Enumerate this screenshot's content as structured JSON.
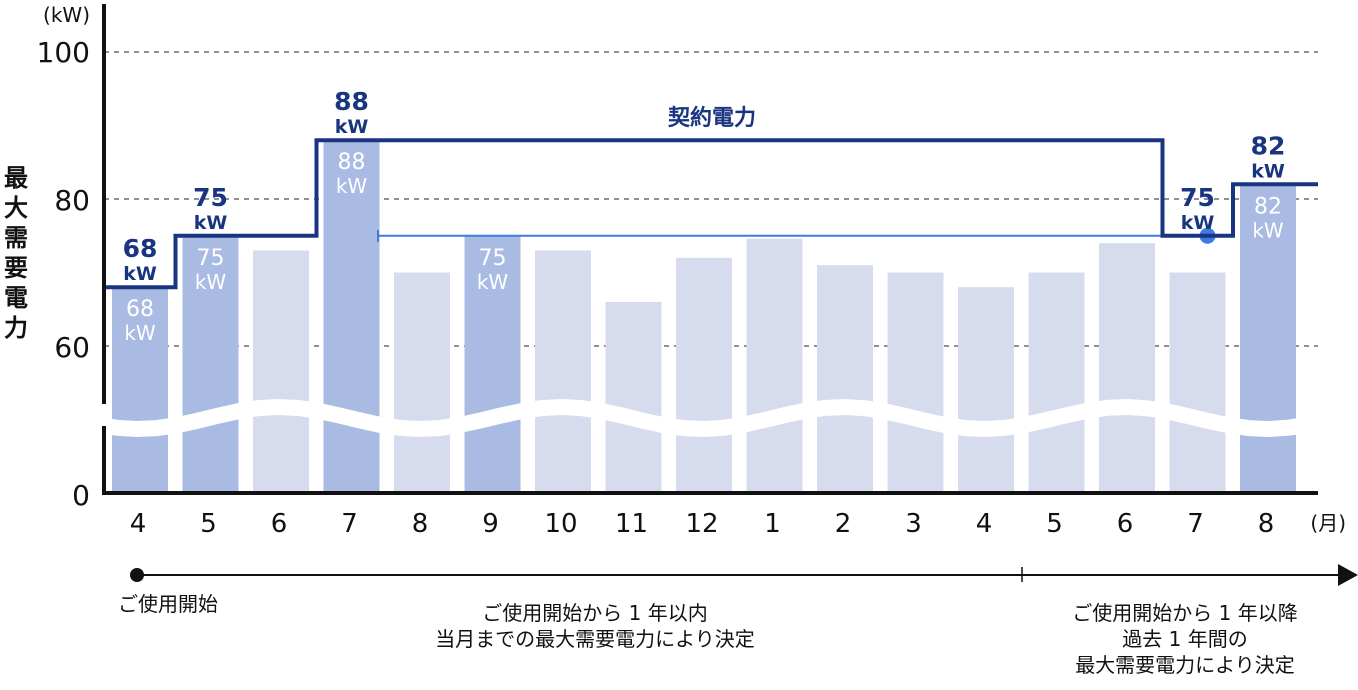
{
  "chart_data": {
    "type": "bar",
    "title": "",
    "ylabel": "最大需要電力",
    "yunit": "(kW)",
    "xunit": "(月)",
    "ylim": [
      0,
      100
    ],
    "yticks": [
      0,
      60,
      80,
      100
    ],
    "axis_break": true,
    "grid": "dashed at 60, 80, 100",
    "categories": [
      "4",
      "5",
      "6",
      "7",
      "8",
      "9",
      "10",
      "11",
      "12",
      "1",
      "2",
      "3",
      "4",
      "5",
      "6",
      "7",
      "8"
    ],
    "series": [
      {
        "name": "最大需要電力",
        "values": [
          68,
          75,
          73,
          88,
          70,
          75,
          73,
          66,
          72,
          74.6,
          71,
          70,
          68,
          70,
          74,
          70,
          82
        ],
        "highlight": [
          true,
          true,
          false,
          true,
          false,
          true,
          false,
          false,
          false,
          false,
          false,
          false,
          false,
          false,
          false,
          false,
          true
        ]
      },
      {
        "name": "契約電力",
        "type": "step-line",
        "values": [
          68,
          75,
          75,
          88,
          88,
          88,
          88,
          88,
          88,
          88,
          88,
          88,
          88,
          88,
          88,
          75,
          82
        ]
      }
    ],
    "bar_labels": [
      {
        "index": 0,
        "value": "68",
        "unit": "kW"
      },
      {
        "index": 1,
        "value": "75",
        "unit": "kW"
      },
      {
        "index": 3,
        "value": "88",
        "unit": "kW"
      },
      {
        "index": 5,
        "value": "75",
        "unit": "kW"
      },
      {
        "index": 16,
        "value": "82",
        "unit": "kW"
      }
    ],
    "contract_labels": [
      {
        "index": 0,
        "value": "68",
        "unit": "kW"
      },
      {
        "index": 1,
        "value": "75",
        "unit": "kW"
      },
      {
        "index": 3,
        "value": "88",
        "unit": "kW"
      },
      {
        "index": 15,
        "value": "75",
        "unit": "kW"
      },
      {
        "index": 16,
        "value": "82",
        "unit": "kW"
      }
    ],
    "contract_line_label": "契約電力",
    "reference_line": {
      "from_index": 4,
      "to_index": 15,
      "value": 75,
      "marker_at": 15
    },
    "colors": {
      "highlight_bar": "#a9bbe2",
      "normal_bar": "#d6dced",
      "contract_line": "#1a3580",
      "reference_line": "#3e7be0",
      "axis": "#111111",
      "bar_label": "#ffffff"
    }
  },
  "y_axis": {
    "unit_label": "(kW)",
    "title": "最大需要電力",
    "ticks": [
      "100",
      "80",
      "60",
      "0"
    ]
  },
  "x_axis": {
    "labels": [
      "4",
      "5",
      "6",
      "7",
      "8",
      "9",
      "10",
      "11",
      "12",
      "1",
      "2",
      "3",
      "4",
      "5",
      "6",
      "7",
      "8"
    ],
    "unit_label": "(月)"
  },
  "contract_label": "契約電力",
  "timeline": {
    "start_label": "ご使用開始",
    "period1_line1": "ご使用開始から 1 年以内",
    "period1_line2": "当月までの最大需要電力により決定",
    "period2_line1": "ご使用開始から 1 年以降",
    "period2_line2": "過去 1 年間の",
    "period2_line3": "最大需要電力により決定"
  }
}
